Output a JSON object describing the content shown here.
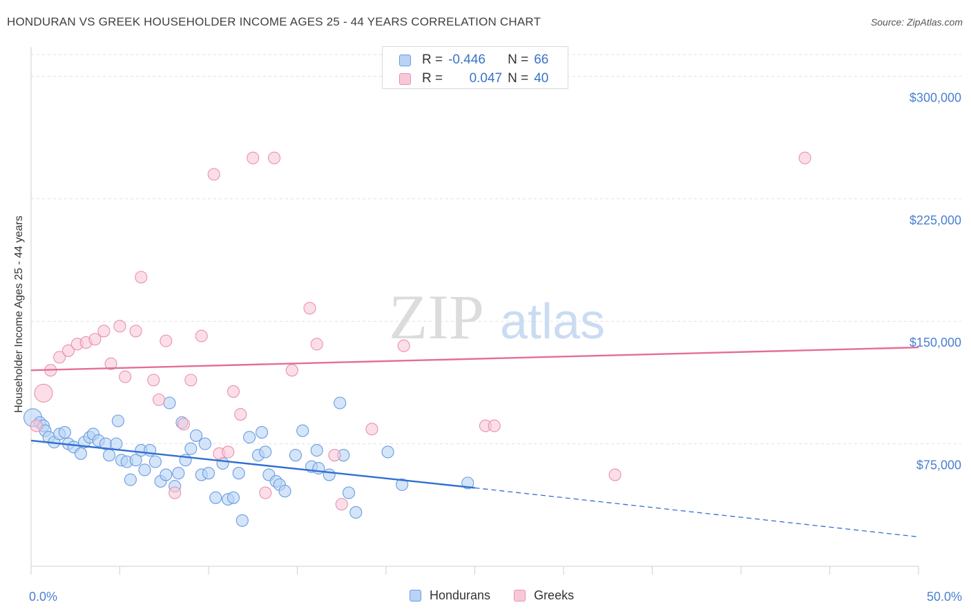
{
  "title": "HONDURAN VS GREEK HOUSEHOLDER INCOME AGES 25 - 44 YEARS CORRELATION CHART",
  "source": "Source: ZipAtlas.com",
  "watermark": {
    "zip": "ZIP",
    "atlas": "atlas"
  },
  "legend_stats": {
    "r_label": "R =",
    "n_label": "N =",
    "rows": [
      {
        "r": "-0.446",
        "n": "66",
        "fill": "#b8d3f5",
        "stroke": "#6a9be0"
      },
      {
        "r": "0.047",
        "n": "40",
        "fill": "#f9c8d8",
        "stroke": "#e890b0"
      }
    ]
  },
  "chart_data": {
    "type": "scatter",
    "title": "HONDURAN VS GREEK HOUSEHOLDER INCOME AGES 25 - 44 YEARS CORRELATION CHART",
    "xlabel": "",
    "ylabel": "Householder Income Ages 25 - 44 years",
    "xlim": [
      0,
      50
    ],
    "ylim": [
      0,
      315000
    ],
    "x_tick_labels": [
      "0.0%",
      "50.0%"
    ],
    "y_ticks": [
      75000,
      150000,
      225000,
      300000
    ],
    "y_tick_labels": [
      "$75,000",
      "$150,000",
      "$225,000",
      "$300,000"
    ],
    "grid": true,
    "legend_position": "bottom",
    "series": [
      {
        "name": "Hondurans",
        "color": "#6a9be0",
        "fill": "#b8d3f5",
        "line_color": "#2f6fd1",
        "trend": {
          "x0": 0,
          "y0": 77000,
          "x1": 25,
          "y1": 48000,
          "dash_to_x": 50,
          "dash_to_y": 18000
        },
        "points": [
          [
            0.1,
            91000
          ],
          [
            0.5,
            88000
          ],
          [
            0.7,
            86000
          ],
          [
            0.8,
            83000
          ],
          [
            1.0,
            79000
          ],
          [
            1.3,
            76000
          ],
          [
            1.6,
            81000
          ],
          [
            1.9,
            82000
          ],
          [
            2.1,
            75000
          ],
          [
            2.4,
            73000
          ],
          [
            2.8,
            69000
          ],
          [
            3.0,
            76000
          ],
          [
            3.3,
            79000
          ],
          [
            3.5,
            81000
          ],
          [
            3.8,
            77000
          ],
          [
            4.2,
            75000
          ],
          [
            4.4,
            68000
          ],
          [
            4.8,
            75000
          ],
          [
            4.9,
            89000
          ],
          [
            5.1,
            65000
          ],
          [
            5.4,
            64000
          ],
          [
            5.6,
            53000
          ],
          [
            5.9,
            65000
          ],
          [
            6.2,
            71000
          ],
          [
            6.4,
            59000
          ],
          [
            6.7,
            71000
          ],
          [
            7.0,
            64000
          ],
          [
            7.3,
            52000
          ],
          [
            7.6,
            56000
          ],
          [
            7.8,
            100000
          ],
          [
            8.1,
            49000
          ],
          [
            8.3,
            57000
          ],
          [
            8.5,
            88000
          ],
          [
            8.7,
            65000
          ],
          [
            9.0,
            72000
          ],
          [
            9.3,
            80000
          ],
          [
            9.6,
            56000
          ],
          [
            9.8,
            75000
          ],
          [
            10.0,
            57000
          ],
          [
            10.4,
            42000
          ],
          [
            10.8,
            63000
          ],
          [
            11.1,
            41000
          ],
          [
            11.4,
            42000
          ],
          [
            11.7,
            57000
          ],
          [
            11.9,
            28000
          ],
          [
            12.3,
            79000
          ],
          [
            12.8,
            68000
          ],
          [
            13.0,
            82000
          ],
          [
            13.2,
            70000
          ],
          [
            13.4,
            56000
          ],
          [
            13.8,
            52000
          ],
          [
            14.0,
            50000
          ],
          [
            14.3,
            46000
          ],
          [
            14.9,
            68000
          ],
          [
            15.3,
            83000
          ],
          [
            15.8,
            61000
          ],
          [
            16.1,
            71000
          ],
          [
            16.2,
            60000
          ],
          [
            16.8,
            56000
          ],
          [
            17.4,
            100000
          ],
          [
            17.6,
            68000
          ],
          [
            17.9,
            45000
          ],
          [
            18.3,
            33000
          ],
          [
            20.1,
            70000
          ],
          [
            20.9,
            50000
          ],
          [
            24.6,
            51000
          ]
        ]
      },
      {
        "name": "Greeks",
        "color": "#e890b0",
        "fill": "#f9c8d8",
        "line_color": "#e56c98",
        "trend": {
          "x0": 0,
          "y0": 120000,
          "x1": 50,
          "y1": 134000
        },
        "points": [
          [
            0.3,
            86000
          ],
          [
            0.7,
            106000
          ],
          [
            1.1,
            120000
          ],
          [
            1.6,
            128000
          ],
          [
            2.1,
            132000
          ],
          [
            2.6,
            136000
          ],
          [
            3.1,
            137000
          ],
          [
            3.6,
            139000
          ],
          [
            4.1,
            144000
          ],
          [
            4.5,
            124000
          ],
          [
            5.0,
            147000
          ],
          [
            5.3,
            116000
          ],
          [
            5.9,
            144000
          ],
          [
            6.2,
            177000
          ],
          [
            6.9,
            114000
          ],
          [
            7.2,
            102000
          ],
          [
            7.6,
            138000
          ],
          [
            8.6,
            87000
          ],
          [
            9.0,
            114000
          ],
          [
            9.6,
            141000
          ],
          [
            10.3,
            240000
          ],
          [
            10.6,
            69000
          ],
          [
            11.1,
            70000
          ],
          [
            11.4,
            107000
          ],
          [
            11.8,
            93000
          ],
          [
            12.5,
            250000
          ],
          [
            13.2,
            45000
          ],
          [
            13.7,
            250000
          ],
          [
            14.7,
            120000
          ],
          [
            15.7,
            158000
          ],
          [
            16.1,
            136000
          ],
          [
            17.1,
            68000
          ],
          [
            17.5,
            38000
          ],
          [
            19.2,
            84000
          ],
          [
            21.0,
            135000
          ],
          [
            25.6,
            86000
          ],
          [
            26.1,
            86000
          ],
          [
            32.9,
            56000
          ],
          [
            43.6,
            250000
          ],
          [
            8.1,
            45000
          ]
        ]
      }
    ]
  }
}
